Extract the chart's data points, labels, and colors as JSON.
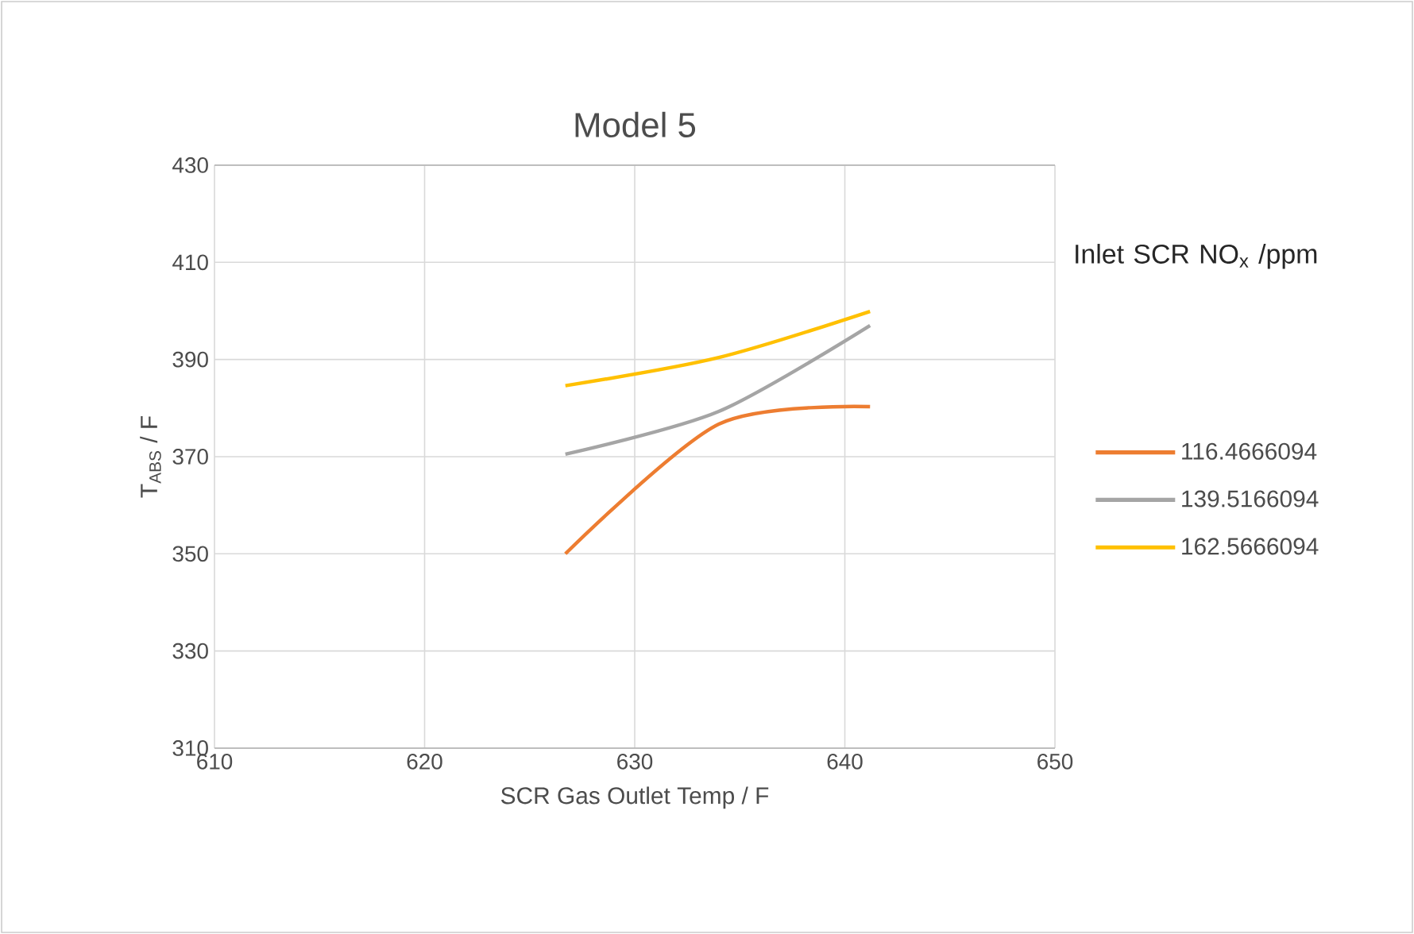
{
  "chart_data": {
    "type": "line",
    "title": "Model 5",
    "xlabel": "SCR Gas Outlet Temp / F",
    "ylabel": "T$_{ABS}$ / F",
    "legend_title": "Inlet SCR NO$_{x}$ /ppm",
    "x": [
      626.7,
      634,
      641.2
    ],
    "series": [
      {
        "name": "116.4666094",
        "color": "#ed7d31",
        "values": [
          350,
          376.7,
          380.3
        ]
      },
      {
        "name": "139.5166094",
        "color": "#a5a5a5",
        "values": [
          370.5,
          379.3,
          397
        ]
      },
      {
        "name": "162.5666094",
        "color": "#ffc000",
        "values": [
          384.6,
          390.4,
          399.9
        ]
      }
    ],
    "xlim": [
      610,
      650
    ],
    "xticks": [
      610,
      620,
      630,
      640,
      650
    ],
    "ylim": [
      310,
      430
    ],
    "yticks": [
      310,
      330,
      350,
      370,
      390,
      410,
      430
    ],
    "grid": true,
    "legend": "right",
    "marker": "none",
    "line_style": "solid"
  }
}
